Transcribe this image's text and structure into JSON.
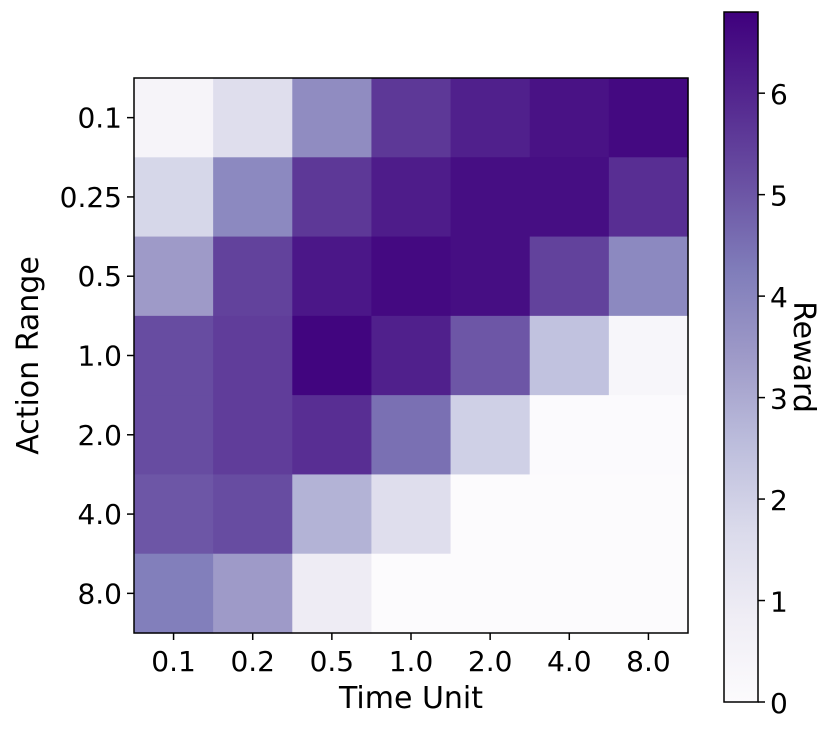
{
  "chart_data": {
    "type": "heatmap",
    "title": "",
    "xlabel": "Time Unit",
    "ylabel": "Action Range",
    "x_categories": [
      "0.1",
      "0.2",
      "0.5",
      "1.0",
      "2.0",
      "4.0",
      "8.0"
    ],
    "y_categories": [
      "0.1",
      "0.25",
      "0.5",
      "1.0",
      "2.0",
      "4.0",
      "8.0"
    ],
    "values": [
      [
        0.4,
        1.5,
        3.8,
        5.6,
        6.1,
        6.4,
        6.6
      ],
      [
        1.8,
        3.9,
        5.6,
        6.2,
        6.5,
        6.5,
        5.8
      ],
      [
        3.4,
        5.4,
        6.3,
        6.6,
        6.5,
        5.4,
        3.9
      ],
      [
        5.2,
        5.5,
        6.7,
        6.1,
        5.0,
        2.4,
        0.3
      ],
      [
        5.2,
        5.5,
        5.8,
        4.5,
        2.0,
        0.05,
        0.05
      ],
      [
        5.0,
        5.2,
        2.8,
        1.5,
        0.0,
        0.0,
        0.0
      ],
      [
        4.2,
        3.4,
        0.9,
        0.0,
        0.0,
        0.0,
        0.0
      ]
    ],
    "colorbar": {
      "label": "Reward",
      "min": 0,
      "max": 6.8,
      "ticks": [
        0,
        1,
        2,
        3,
        4,
        5,
        6
      ],
      "colormap": "Purples",
      "color_low": "#fcfbfd",
      "color_high": "#3f007d"
    },
    "grid": false
  }
}
